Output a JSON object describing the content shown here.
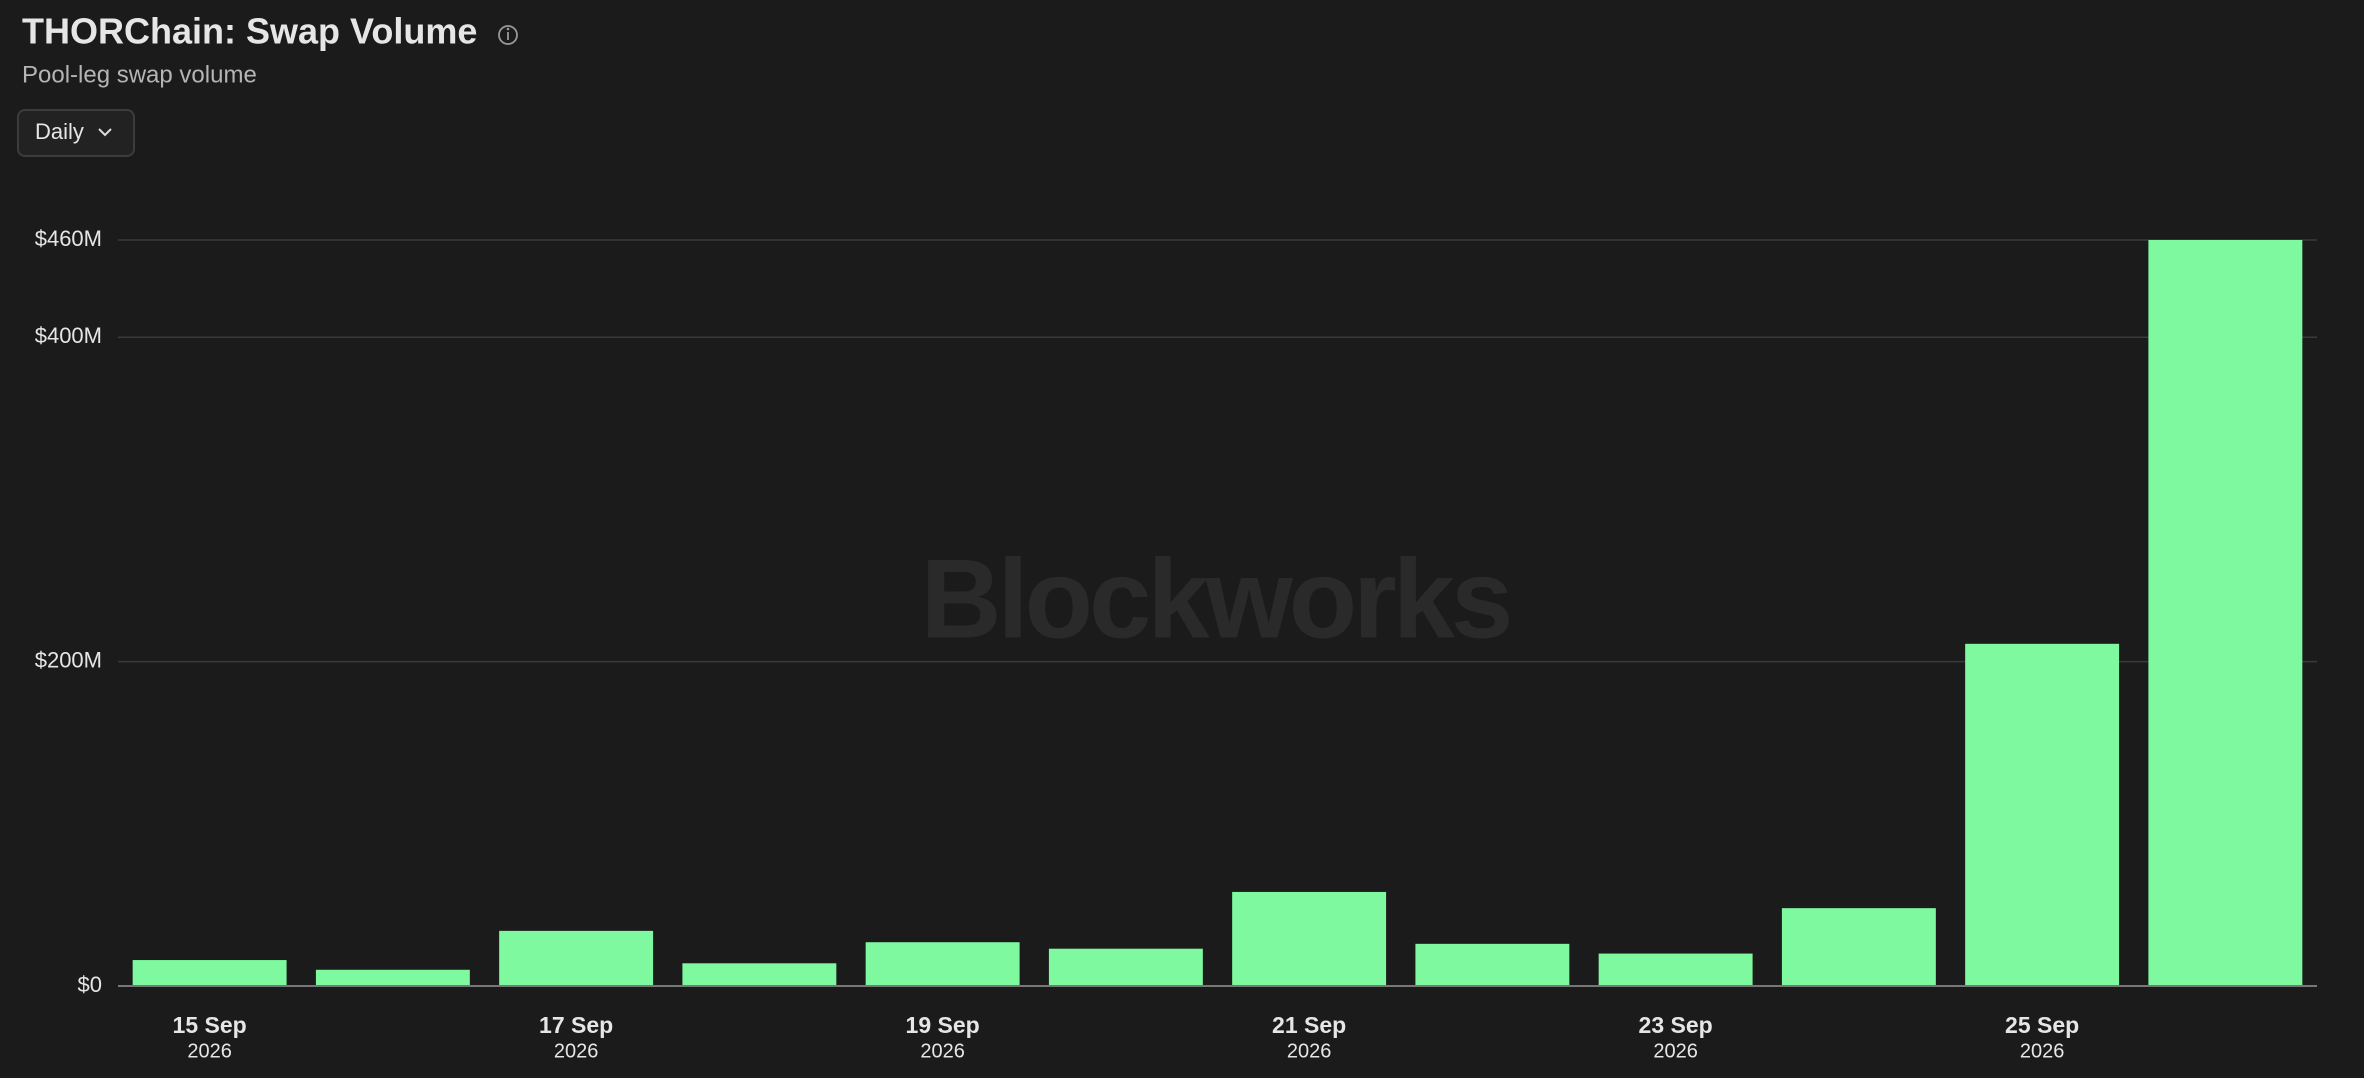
{
  "chart_data": {
    "type": "bar",
    "title": "THORChain: Swap Volume",
    "subtitle": "Pool-leg swap volume",
    "interval": "Daily",
    "watermark": "Blockworks",
    "categories": [
      "15 Sep",
      null,
      "17 Sep",
      null,
      "19 Sep",
      null,
      "21 Sep",
      null,
      "23 Sep",
      null,
      "25 Sep",
      null
    ],
    "category_years": [
      "2026",
      null,
      "2026",
      null,
      "2026",
      null,
      "2026",
      null,
      "2026",
      null,
      "2026",
      null
    ],
    "values": [
      16,
      10,
      34,
      14,
      27,
      23,
      58,
      26,
      20,
      48,
      211,
      460
    ],
    "color": "#7ef9a0",
    "ylim": [
      0,
      460
    ],
    "yticks": [
      {
        "value": 0,
        "label": "$0"
      },
      {
        "value": 200,
        "label": "$200M"
      },
      {
        "value": 400,
        "label": "$400M"
      },
      {
        "value": 460,
        "label": "$460M"
      }
    ],
    "grid": true
  }
}
